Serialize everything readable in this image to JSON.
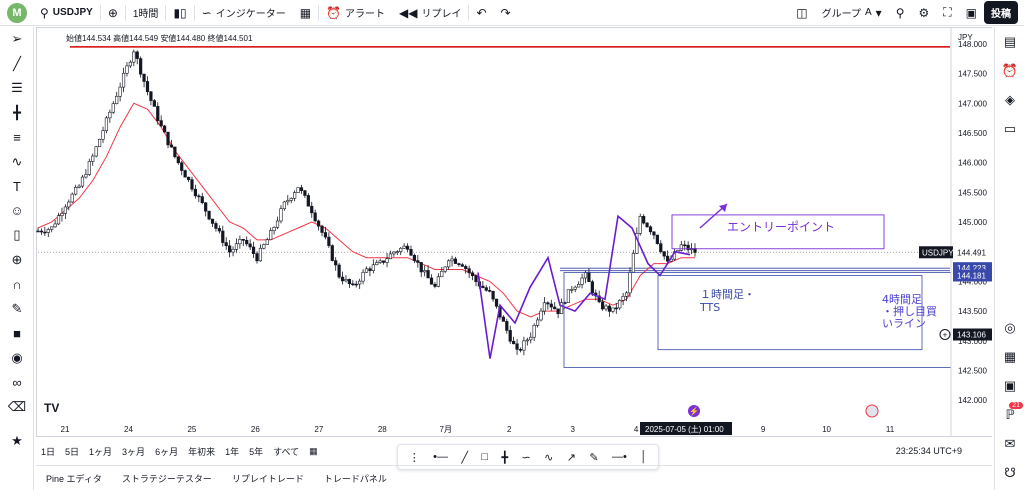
{
  "topbar": {
    "logo_letter": "M",
    "symbol": "USDJPY",
    "timeframe": "1時間",
    "indicators": "インジケーター",
    "alert": "アラート",
    "replay": "リプレイ",
    "group": "グループ",
    "group_letter": "A",
    "post": "投稿"
  },
  "ohlc": {
    "open_label": "始値",
    "open": "144.534",
    "high_label": "高値",
    "high": "144.549",
    "low_label": "安値",
    "low": "144.480",
    "close_label": "終値",
    "close": "144.501"
  },
  "currency": "JPY",
  "price_axis": [
    "148.000",
    "147.500",
    "147.000",
    "146.500",
    "146.000",
    "145.500",
    "145.000",
    "144.500",
    "144.000",
    "143.500",
    "143.000",
    "142.500",
    "142.000"
  ],
  "date_axis": [
    "21",
    "24",
    "25",
    "26",
    "27",
    "28",
    "7月",
    "2",
    "3",
    "4",
    "8",
    "9",
    "10",
    "11"
  ],
  "cursor_date": "2025-07-05 (土)",
  "cursor_time": "01:00",
  "price_tags": {
    "symbol": "USDJPY",
    "current": "144.491",
    "line1": "144.223",
    "line2": "144.181",
    "cursor": "143.106"
  },
  "annotations": {
    "entry": "エントリーポイント",
    "tts_line1": "１時間足・",
    "tts_line2": "TTS",
    "h4_line1": "4時間足",
    "h4_line2": "・押し目買",
    "h4_line3": "いライン"
  },
  "colors": {
    "accent": "#2962ff",
    "bull": "#131722",
    "ma": "#f23645",
    "resistance": "#d50000",
    "annotation": "#7b2fd6",
    "box": "#3949ab"
  },
  "timeframes": [
    "1日",
    "5日",
    "1ヶ月",
    "3ヶ月",
    "6ヶ月",
    "年初来",
    "1年",
    "5年",
    "すべて"
  ],
  "clock": "23:25:34 UTC+9",
  "footer_tabs": [
    "Pine エディタ",
    "ストラテジーテスター",
    "リプレイトレード",
    "トレードパネル"
  ],
  "notifications_count": "21",
  "watermark": "TV",
  "chart_data": {
    "type": "candlestick",
    "symbol": "USDJPY",
    "timeframe": "1時間",
    "ylim": [
      141.75,
      148.1
    ],
    "resistance": 147.95,
    "horizontal_lines": [
      144.223,
      144.181
    ],
    "close_series": [
      144.85,
      144.9,
      145.3,
      145.6,
      146.1,
      146.7,
      147.3,
      147.9,
      147.2,
      146.6,
      146.1,
      145.7,
      145.3,
      144.9,
      144.5,
      144.7,
      144.4,
      144.8,
      145.3,
      145.6,
      145.2,
      144.7,
      144.1,
      143.9,
      144.2,
      144.3,
      144.5,
      144.6,
      144.2,
      143.9,
      144.4,
      144.3,
      144.0,
      143.8,
      143.3,
      142.8,
      143.1,
      143.7,
      143.5,
      143.9,
      144.1,
      143.6,
      143.5,
      143.8,
      145.1,
      144.8,
      144.3,
      144.6,
      144.5
    ],
    "ma_series": [
      144.9,
      145.0,
      145.2,
      145.4,
      145.7,
      146.1,
      146.6,
      147.0,
      146.9,
      146.6,
      146.2,
      145.9,
      145.6,
      145.3,
      145.0,
      144.9,
      144.7,
      144.7,
      144.8,
      144.9,
      145.0,
      144.9,
      144.7,
      144.5,
      144.4,
      144.4,
      144.4,
      144.4,
      144.3,
      144.2,
      144.2,
      144.2,
      144.1,
      144.0,
      143.8,
      143.5,
      143.4,
      143.5,
      143.5,
      143.6,
      143.7,
      143.7,
      143.6,
      143.7,
      144.1,
      144.3,
      144.3,
      144.4,
      144.4
    ]
  }
}
